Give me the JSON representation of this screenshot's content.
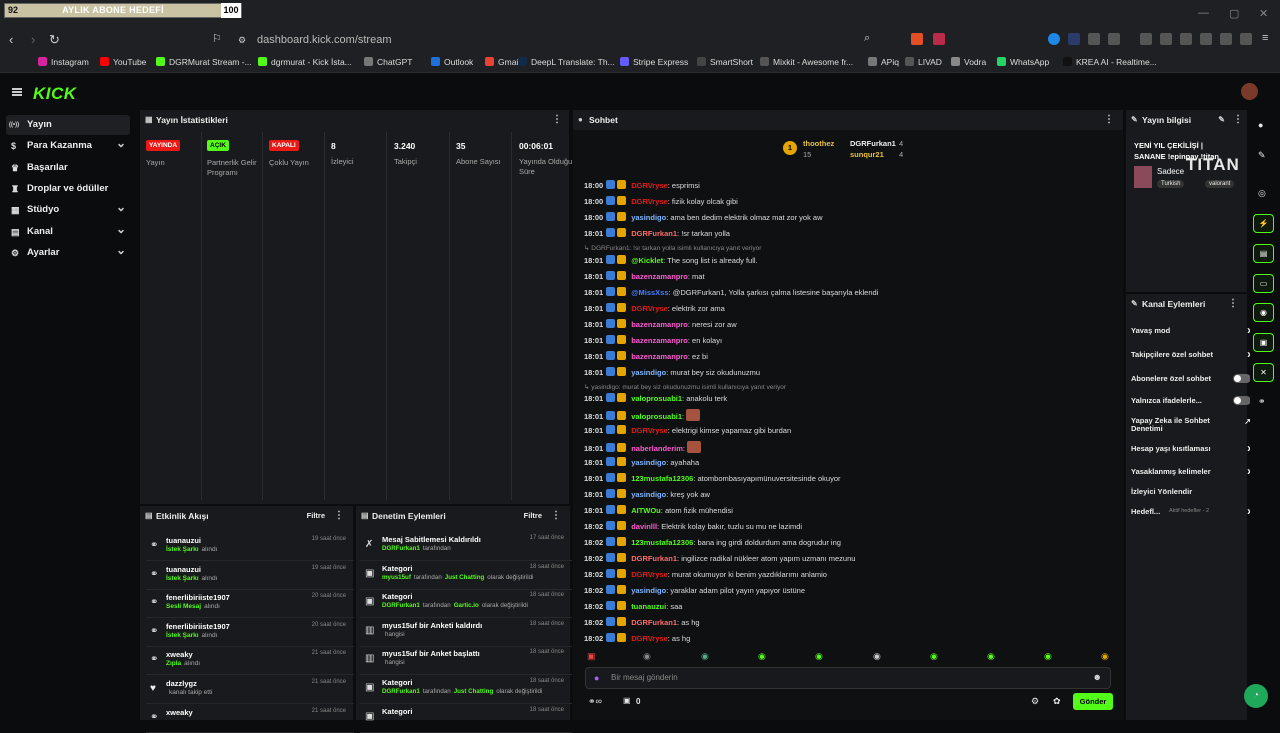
{
  "browser": {
    "goal": {
      "current": "92",
      "label": "AYLIK ABONE HEDEFİ",
      "target": "100",
      "progress": 0.92
    },
    "url": "dashboard.kick.com/stream",
    "bookmarks": [
      "Instagram",
      "YouTube",
      "DGRMurat Stream -...",
      "dgrmurat - Kick İsta...",
      "ChatGPT",
      "Outlook",
      "Gmail",
      "DeepL Translate: Th...",
      "Stripe Express",
      "SmartShort",
      "Mixkit - Awesome fr...",
      "APiq",
      "LIVAD",
      "Vodra",
      "WhatsApp",
      "KREA AI - Realtime..."
    ]
  },
  "header": {
    "logo": "KICK"
  },
  "sidebar": {
    "items": [
      {
        "label": "Yayın",
        "icon": "broadcast-icon",
        "active": true
      },
      {
        "label": "Para Kazanma",
        "icon": "money-icon",
        "chevron": true
      },
      {
        "label": "Başarılar",
        "icon": "trophy-icon"
      },
      {
        "label": "Droplar ve ödüller",
        "icon": "gift-icon"
      },
      {
        "label": "Stüdyo",
        "icon": "studio-icon",
        "chevron": true
      },
      {
        "label": "Kanal",
        "icon": "channel-icon",
        "chevron": true
      },
      {
        "label": "Ayarlar",
        "icon": "gear-icon",
        "chevron": true
      }
    ]
  },
  "stats": {
    "title": "Yayın İstatistikleri",
    "items": [
      {
        "badge": "YAYINDA",
        "badge_color": "#e91916",
        "label": "Yayın"
      },
      {
        "badge": "AÇIK",
        "badge_color": "#53fc18",
        "label": "Partnerlik Gelir Programı"
      },
      {
        "badge": "KAPALI",
        "badge_color": "#e91916",
        "label": "Çoklu Yayın"
      },
      {
        "value": "8",
        "label": "İzleyici"
      },
      {
        "value": "3.240",
        "label": "Takipçi"
      },
      {
        "value": "35",
        "label": "Abone Sayısı"
      },
      {
        "value": "00:06:01",
        "label": "Yayında Olduğu Süre"
      }
    ]
  },
  "activity": {
    "title": "Etkinlik Akışı",
    "filter": "Filtre",
    "items": [
      {
        "name": "tuanauzui",
        "sub": "İstek Şarkı",
        "sub2": "alındı",
        "time": "19 saat önce"
      },
      {
        "name": "tuanauzui",
        "sub": "İstek Şarkı",
        "sub2": "alındı",
        "time": "19 saat önce"
      },
      {
        "name": "fenerlibiriiste1907",
        "sub": "Sesli Mesaj",
        "sub2": "alındı",
        "time": "20 saat önce"
      },
      {
        "name": "fenerlibiriiste1907",
        "sub": "İstek Şarkı",
        "sub2": "alındı",
        "time": "20 saat önce"
      },
      {
        "name": "xweaky",
        "sub": "Zıpla",
        "sub2": "alındı",
        "time": "21 saat önce"
      },
      {
        "name": "dazzlygz",
        "sub": "",
        "sub2": "kanalı takip etti",
        "time": "21 saat önce"
      },
      {
        "name": "xweaky",
        "sub": "",
        "sub2": "",
        "time": "21 saat önce"
      }
    ]
  },
  "moderation": {
    "title": "Denetim Eylemleri",
    "filter": "Filtre",
    "items": [
      {
        "title": "Mesaj Sabitlemesi Kaldırıldı",
        "user": "DGRFurkan1",
        "rest": "tarafından",
        "time": "17 saat önce"
      },
      {
        "title": "Kategori",
        "user": "myus15uf",
        "rest": "tarafından",
        "cat": "Just Chatting",
        "rest2": "olarak değiştirildi",
        "time": "18 saat önce"
      },
      {
        "title": "Kategori",
        "user": "DGRFurkan1",
        "rest": "tarafından",
        "cat": "Gartic.io",
        "rest2": "olarak değiştirildi",
        "time": "18 saat önce"
      },
      {
        "title": "myus15uf bir Anketi kaldırdı",
        "user": "",
        "rest": "hangisi",
        "time": "18 saat önce"
      },
      {
        "title": "myus15uf bir Anket başlattı",
        "user": "",
        "rest": "hangisi",
        "time": "18 saat önce"
      },
      {
        "title": "Kategori",
        "user": "DGRFurkan1",
        "rest": "tarafından",
        "cat": "Just Chatting",
        "rest2": "olarak değiştirildi",
        "time": "18 saat önce"
      },
      {
        "title": "Kategori",
        "user": "",
        "rest": "",
        "time": "18 saat önce"
      }
    ]
  },
  "chat": {
    "title": "Sohbet",
    "leaders": [
      {
        "rank": "1",
        "name": "thoothez",
        "count": "15"
      },
      {
        "name": "DGRFurkan1",
        "count": "4"
      },
      {
        "name": "sunqur21",
        "count": "4"
      }
    ],
    "messages": [
      {
        "t": "18:00",
        "u": "DGRVryse",
        "c": "#e91916",
        "m": "esprimsi"
      },
      {
        "t": "18:00",
        "u": "DGRVryse",
        "c": "#e91916",
        "m": "fizik kolay olcak gibi"
      },
      {
        "t": "18:00",
        "u": "yasindigo",
        "c": "#7fb7ff",
        "m": "ama ben dedim elektrik olmaz mat zor yok aw"
      },
      {
        "t": "18:01",
        "u": "DGRFurkan1",
        "c": "#ff6b6b",
        "m": "!sr tarkan yolla"
      },
      {
        "sys": "DGRFurkan1: !sr tarkan yolla isimli kullanıcıya yanıt veriyor"
      },
      {
        "t": "18:01",
        "u": "@Kicklet",
        "c": "#53fc18",
        "m": "The song list is already full."
      },
      {
        "t": "18:01",
        "u": "bazenzamanpro",
        "c": "#ff5bd2",
        "m": "mat"
      },
      {
        "t": "18:01",
        "u": "@MissXss",
        "c": "#4a7dff",
        "m": "@DGRFurkan1, Yolla şarkısı çalma listesine başarıyla eklendi"
      },
      {
        "t": "18:01",
        "u": "DGRVryse",
        "c": "#e91916",
        "m": "elektrik zor ama"
      },
      {
        "t": "18:01",
        "u": "bazenzamanpro",
        "c": "#ff5bd2",
        "m": "neresi zor aw"
      },
      {
        "t": "18:01",
        "u": "bazenzamanpro",
        "c": "#ff5bd2",
        "m": "en kolayı"
      },
      {
        "t": "18:01",
        "u": "bazenzamanpro",
        "c": "#ff5bd2",
        "m": "ez bi"
      },
      {
        "t": "18:01",
        "u": "yasindigo",
        "c": "#7fb7ff",
        "m": "murat bey siz okudunuzmu"
      },
      {
        "sys": "yasindigo: murat bey siz okudunuzmu isimli kullanıcıya yanıt veriyor"
      },
      {
        "t": "18:01",
        "u": "valoprosuabi1",
        "c": "#53fc18",
        "m": "anakolu terk"
      },
      {
        "t": "18:01",
        "u": "valoprosuabi1",
        "c": "#53fc18",
        "m": ""
      },
      {
        "t": "18:01",
        "u": "DGRVryse",
        "c": "#e91916",
        "m": "elektrigi kimse yapamaz gibi burdan"
      },
      {
        "t": "18:01",
        "u": "naberlanderim",
        "c": "#ff5bd2",
        "m": ""
      },
      {
        "t": "18:01",
        "u": "yasindigo",
        "c": "#7fb7ff",
        "m": "ayahaha"
      },
      {
        "t": "18:01",
        "u": "123mustafa12306",
        "c": "#53fc18",
        "m": "atombombasıyapımünuversitesinde okuyor"
      },
      {
        "t": "18:01",
        "u": "yasindigo",
        "c": "#7fb7ff",
        "m": "kreş yok aw"
      },
      {
        "t": "18:01",
        "u": "AITWOu",
        "c": "#53fc18",
        "m": "atom fizik mühendisi"
      },
      {
        "t": "18:02",
        "u": "davinlll",
        "c": "#ff5bd2",
        "m": "Elektrik kolay bakır, tuzlu su mu ne lazimdi"
      },
      {
        "t": "18:02",
        "u": "123mustafa12306",
        "c": "#53fc18",
        "m": "bana ing girdi doldurdum ama dogrudur ing"
      },
      {
        "t": "18:02",
        "u": "DGRFurkan1",
        "c": "#ff6b6b",
        "m": "ingilizce radikal nükleer atom yapım uzmanı mezunu"
      },
      {
        "t": "18:02",
        "u": "DGRVryse",
        "c": "#e91916",
        "m": "murat okumuyor ki benim yazdıklarımı anlamio"
      },
      {
        "t": "18:02",
        "u": "yasindigo",
        "c": "#7fb7ff",
        "m": "yaraklar adam pilot yayın yapıyor üstüne"
      },
      {
        "t": "18:02",
        "u": "tuanauzui",
        "c": "#53fc18",
        "m": "saa"
      },
      {
        "t": "18:02",
        "u": "DGRFurkan1",
        "c": "#ff6b6b",
        "m": "as hg"
      },
      {
        "t": "18:02",
        "u": "DGRVryse",
        "c": "#e91916",
        "m": "as hg"
      }
    ],
    "input_placeholder": "Bir mesaj gönderin",
    "points": "0",
    "send": "Gönder"
  },
  "stream_info": {
    "title": "Yayın bilgisi",
    "line1": "YENİ YIL ÇEKİLİŞİ |",
    "line2": "SANANE !epinpay !titan",
    "channel": "Sadece",
    "tags": [
      "Turkish",
      "valorant"
    ],
    "overlay": "TITAN"
  },
  "channel_actions": {
    "title": "Kanal Eylemleri",
    "items": [
      {
        "label": "Yavaş mod",
        "type": "chevron"
      },
      {
        "label": "Takipçilere özel sohbet",
        "type": "chevron"
      },
      {
        "label": "Abonelere özel sohbet",
        "type": "toggle"
      },
      {
        "label": "Yalnızca ifadelerle...",
        "type": "toggle"
      },
      {
        "label": "Yapay Zeka ile Sohbet Denetimi",
        "type": "link"
      },
      {
        "label": "Hesap yaşı kısıtlaması",
        "type": "chevron"
      },
      {
        "label": "Yasaklanmış kelimeler",
        "type": "chevron"
      },
      {
        "label": "İzleyici Yönlendir",
        "type": "none"
      },
      {
        "label": "Hedefl...",
        "type": "chevron",
        "extra": "Aktif hedefler - 2"
      }
    ]
  }
}
